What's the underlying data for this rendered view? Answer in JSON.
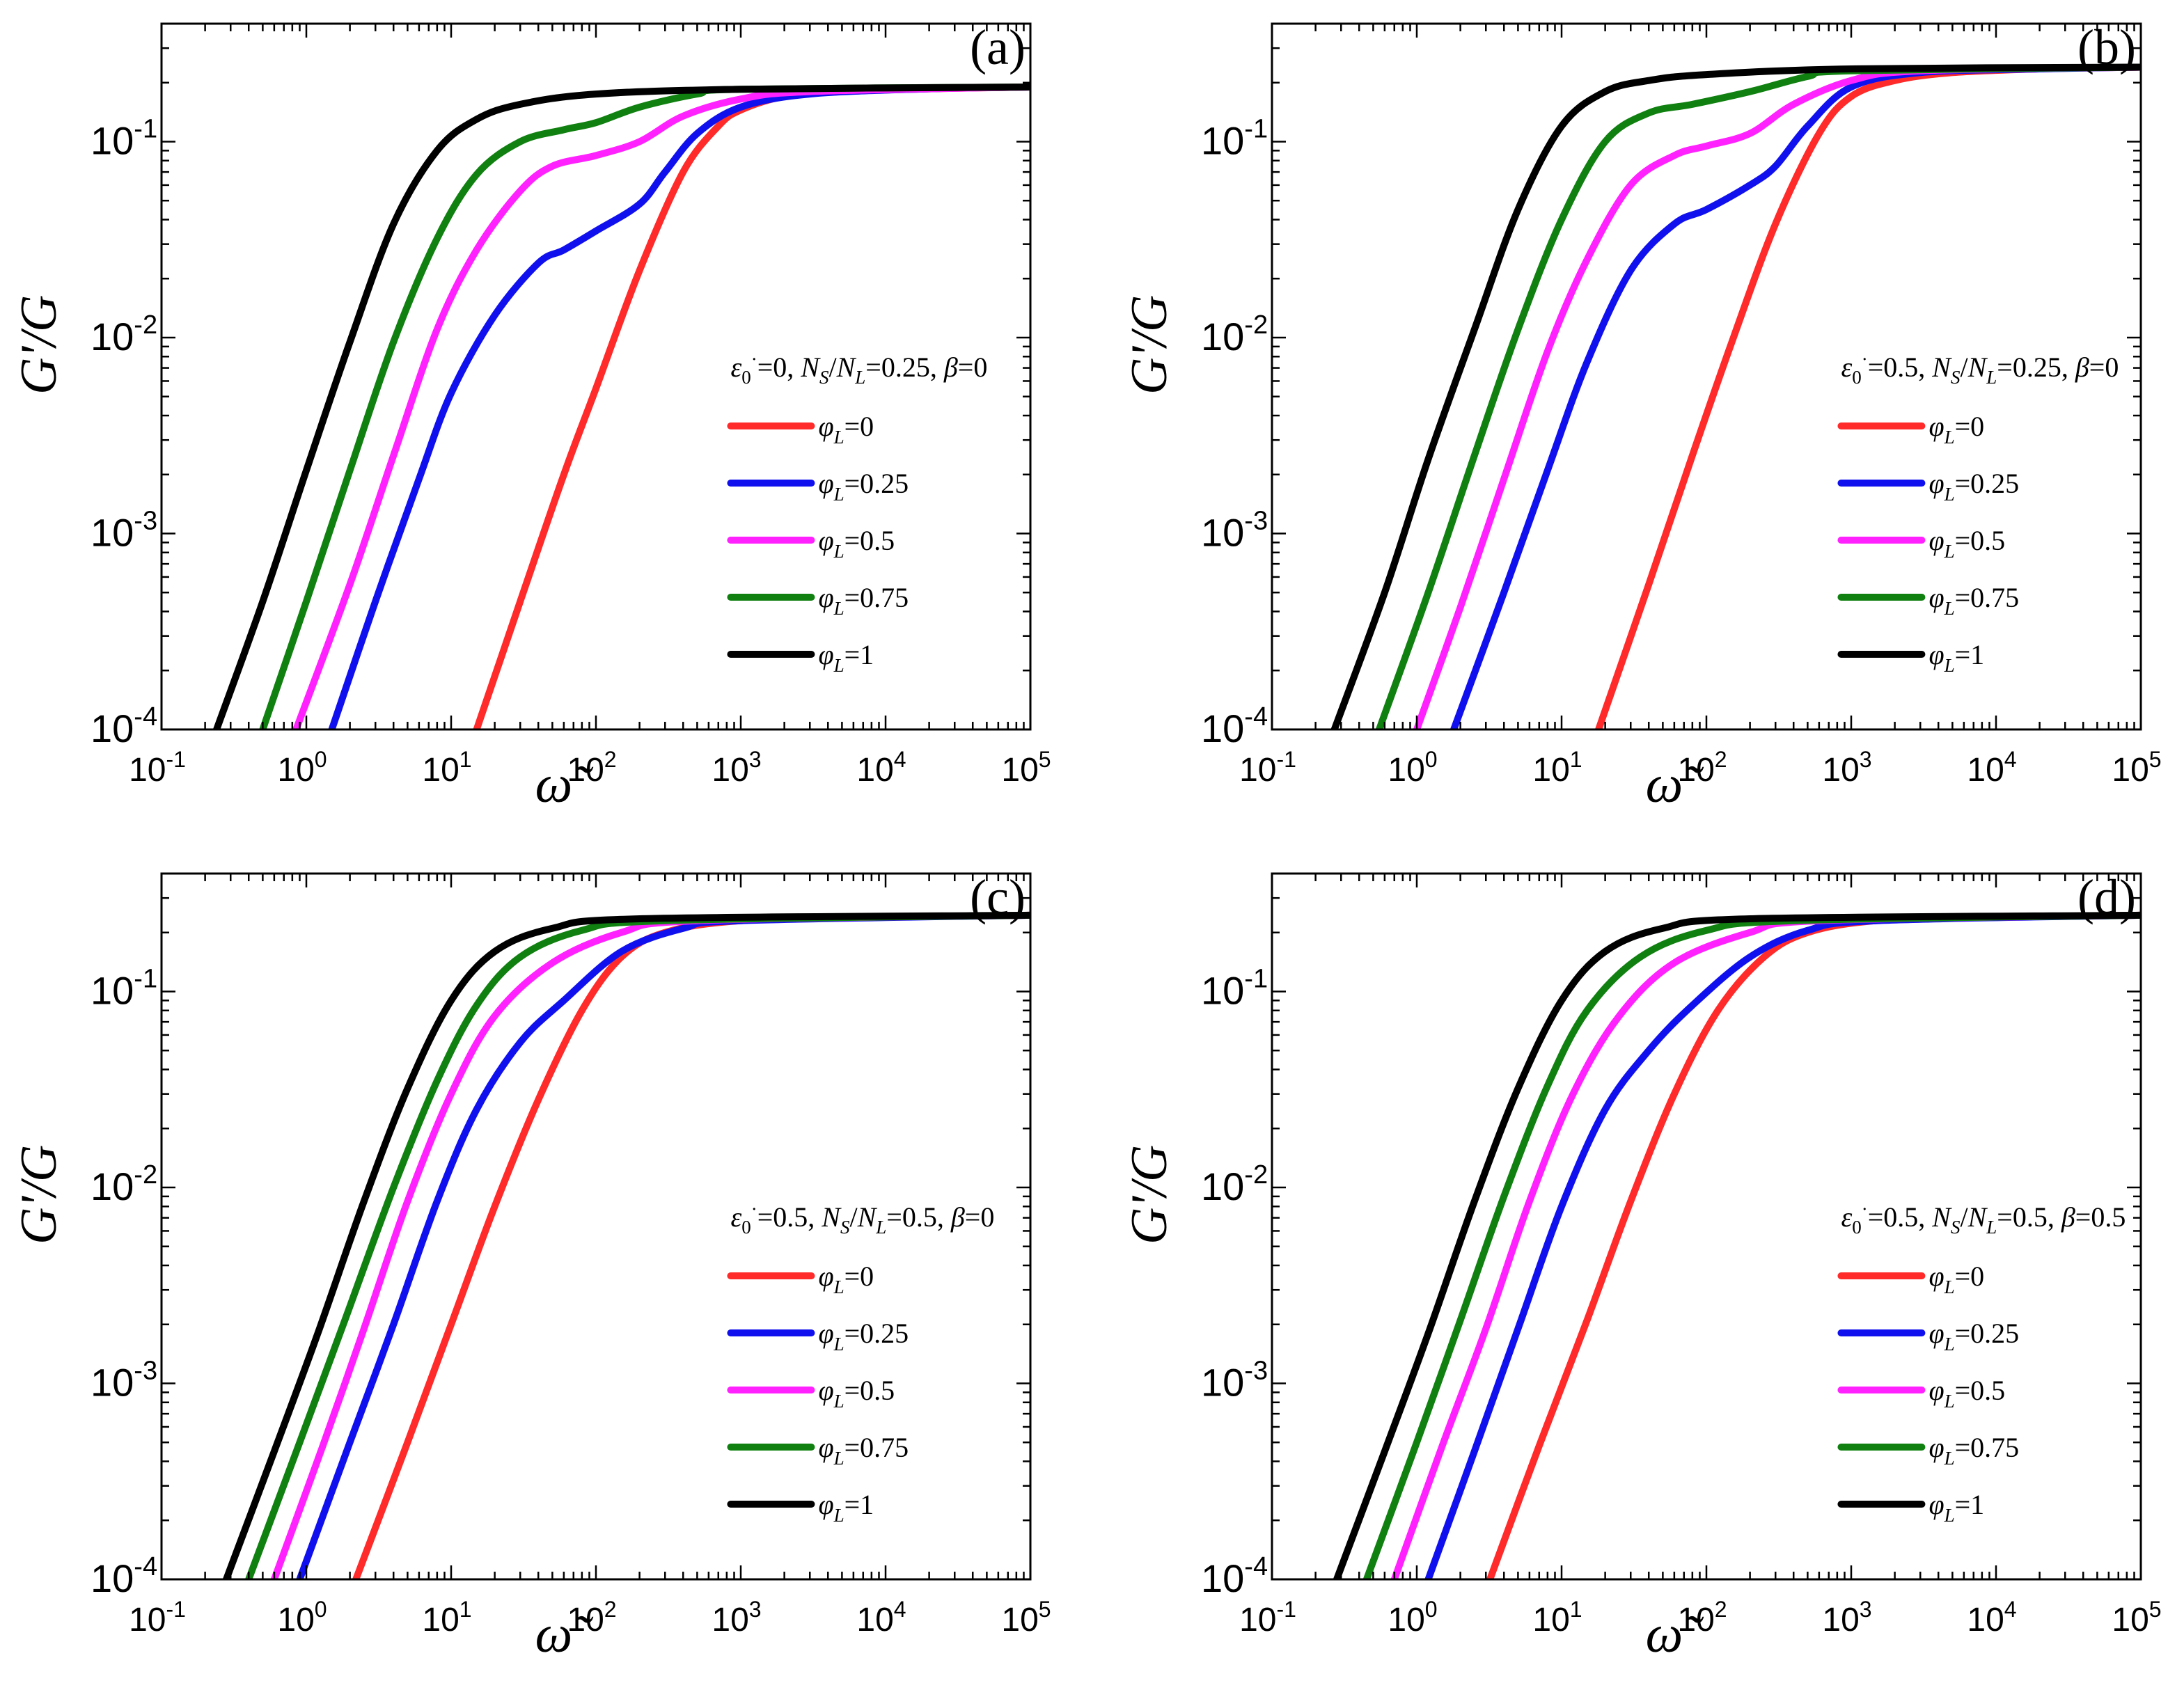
{
  "chart_data": [
    {
      "panel_label": "(a)",
      "type": "line",
      "xscale": "log",
      "yscale": "log",
      "xlim": [
        0.1,
        100000
      ],
      "ylim": [
        0.0001,
        0.4
      ],
      "xlabel": "ω̃",
      "ylabel": "G'/G",
      "x_tick_labels": [
        "10",
        "10",
        "10",
        "10",
        "10",
        "10",
        "10"
      ],
      "x_tick_exponents": [
        "-1",
        "0",
        "1",
        "2",
        "3",
        "4",
        "5"
      ],
      "y_tick_labels": [
        "10",
        "10",
        "10",
        "10"
      ],
      "y_tick_exponents": [
        "-4",
        "-3",
        "-2",
        "-1"
      ],
      "params": {
        "eps0": "0",
        "ratio": "0.25",
        "beta": "0"
      },
      "legend_position": "center-right",
      "series": [
        {
          "name": "φL=0",
          "phi": "0",
          "color": "#ff2a2a",
          "x": [
            15,
            30,
            60,
            100,
            200,
            400,
            700,
            1000,
            2000,
            5000,
            20000,
            100000
          ],
          "y": [
            0.0001,
            0.00045,
            0.002,
            0.0055,
            0.022,
            0.07,
            0.12,
            0.145,
            0.17,
            0.18,
            0.186,
            0.19
          ]
        },
        {
          "name": "φL=0.25",
          "phi": "0.25",
          "color": "#1010ee",
          "x": [
            1.5,
            3,
            6,
            10,
            20,
            40,
            60,
            100,
            200,
            300,
            500,
            1000,
            3000,
            20000,
            100000
          ],
          "y": [
            0.0001,
            0.00045,
            0.0019,
            0.0052,
            0.013,
            0.024,
            0.028,
            0.035,
            0.048,
            0.07,
            0.11,
            0.15,
            0.175,
            0.186,
            0.19
          ]
        },
        {
          "name": "φL=0.5",
          "phi": "0.5",
          "color": "#ff22ff",
          "x": [
            0.85,
            2,
            4,
            8,
            15,
            30,
            50,
            100,
            200,
            400,
            1000,
            3000,
            100000
          ],
          "y": [
            0.0001,
            0.00055,
            0.0025,
            0.011,
            0.028,
            0.056,
            0.075,
            0.085,
            0.1,
            0.135,
            0.165,
            0.18,
            0.19
          ]
        },
        {
          "name": "φL=0.75",
          "phi": "0.75",
          "color": "#108010",
          "x": [
            0.5,
            1,
            2,
            4,
            8,
            15,
            30,
            60,
            100,
            200,
            500,
            1000,
            100000
          ],
          "y": [
            0.0001,
            0.00045,
            0.0021,
            0.0095,
            0.032,
            0.068,
            0.1,
            0.115,
            0.125,
            0.15,
            0.175,
            0.185,
            0.19
          ]
        },
        {
          "name": "φL=1",
          "phi": "1",
          "color": "#000000",
          "x": [
            0.24,
            0.5,
            1,
            2,
            4,
            8,
            15,
            30,
            100,
            1000,
            100000
          ],
          "y": [
            0.0001,
            0.00045,
            0.0021,
            0.0095,
            0.038,
            0.09,
            0.13,
            0.155,
            0.175,
            0.185,
            0.19
          ]
        }
      ]
    },
    {
      "panel_label": "(b)",
      "type": "line",
      "xscale": "log",
      "yscale": "log",
      "xlim": [
        0.1,
        100000
      ],
      "ylim": [
        0.0001,
        0.4
      ],
      "xlabel": "ω̃",
      "ylabel": "G'/G",
      "x_tick_labels": [
        "10",
        "10",
        "10",
        "10",
        "10",
        "10",
        "10"
      ],
      "x_tick_exponents": [
        "-1",
        "0",
        "1",
        "2",
        "3",
        "4",
        "5"
      ],
      "y_tick_labels": [
        "10",
        "10",
        "10",
        "10"
      ],
      "y_tick_exponents": [
        "-4",
        "-3",
        "-2",
        "-1"
      ],
      "params": {
        "eps0": "0.5",
        "ratio": "0.25",
        "beta": "0"
      },
      "legend_position": "center-right",
      "series": [
        {
          "name": "φL=0",
          "phi": "0",
          "color": "#ff2a2a",
          "x": [
            18,
            40,
            80,
            150,
            300,
            600,
            1000,
            2000,
            5000,
            20000,
            100000
          ],
          "y": [
            0.0001,
            0.00055,
            0.0025,
            0.0095,
            0.038,
            0.11,
            0.17,
            0.205,
            0.225,
            0.235,
            0.24
          ]
        },
        {
          "name": "φL=0.25",
          "phi": "0.25",
          "color": "#1010ee",
          "x": [
            1.8,
            4,
            8,
            15,
            30,
            60,
            100,
            200,
            300,
            500,
            1000,
            3000,
            20000,
            100000
          ],
          "y": [
            0.0001,
            0.0005,
            0.0021,
            0.0075,
            0.022,
            0.038,
            0.045,
            0.06,
            0.075,
            0.12,
            0.19,
            0.225,
            0.235,
            0.24
          ]
        },
        {
          "name": "φL=0.5",
          "phi": "0.5",
          "color": "#ff22ff",
          "x": [
            1,
            2,
            4,
            8,
            15,
            30,
            60,
            100,
            200,
            400,
            1000,
            3000,
            100000
          ],
          "y": [
            0.0001,
            0.00042,
            0.0019,
            0.0085,
            0.025,
            0.06,
            0.085,
            0.095,
            0.11,
            0.155,
            0.205,
            0.23,
            0.24
          ]
        },
        {
          "name": "φL=0.75",
          "phi": "0.75",
          "color": "#108010",
          "x": [
            0.55,
            1.2,
            2.5,
            5,
            10,
            20,
            40,
            80,
            200,
            500,
            1000,
            100000
          ],
          "y": [
            0.0001,
            0.0005,
            0.0025,
            0.011,
            0.04,
            0.1,
            0.14,
            0.155,
            0.18,
            0.215,
            0.23,
            0.24
          ]
        },
        {
          "name": "φL=1",
          "phi": "1",
          "color": "#000000",
          "x": [
            0.27,
            0.6,
            1.2,
            2.5,
            5,
            10,
            20,
            40,
            100,
            1000,
            100000
          ],
          "y": [
            0.0001,
            0.0005,
            0.0024,
            0.011,
            0.045,
            0.12,
            0.18,
            0.205,
            0.22,
            0.235,
            0.24
          ]
        }
      ]
    },
    {
      "panel_label": "(c)",
      "type": "line",
      "xscale": "log",
      "yscale": "log",
      "xlim": [
        0.1,
        100000
      ],
      "ylim": [
        0.0001,
        0.4
      ],
      "xlabel": "ω̃",
      "ylabel": "G'/G",
      "x_tick_labels": [
        "10",
        "10",
        "10",
        "10",
        "10",
        "10",
        "10"
      ],
      "x_tick_exponents": [
        "-1",
        "0",
        "1",
        "2",
        "3",
        "4",
        "5"
      ],
      "y_tick_labels": [
        "10",
        "10",
        "10",
        "10"
      ],
      "y_tick_exponents": [
        "-4",
        "-3",
        "-2",
        "-1"
      ],
      "params": {
        "eps0": "0.5",
        "ratio": "0.5",
        "beta": "0"
      },
      "legend_position": "center-right",
      "series": [
        {
          "name": "φL=0",
          "phi": "0",
          "color": "#ff2a2a",
          "x": [
            2.2,
            5,
            10,
            20,
            40,
            80,
            150,
            300,
            1000,
            10000,
            100000
          ],
          "y": [
            0.0001,
            0.0005,
            0.002,
            0.008,
            0.028,
            0.08,
            0.15,
            0.2,
            0.23,
            0.24,
            0.245
          ]
        },
        {
          "name": "φL=0.25",
          "phi": "0.25",
          "color": "#1010ee",
          "x": [
            0.9,
            2,
            4,
            8,
            15,
            30,
            60,
            150,
            400,
            1000,
            100000
          ],
          "y": [
            0.0001,
            0.0005,
            0.002,
            0.0085,
            0.025,
            0.055,
            0.09,
            0.16,
            0.21,
            0.23,
            0.245
          ]
        },
        {
          "name": "φL=0.5",
          "phi": "0.5",
          "color": "#ff22ff",
          "x": [
            0.6,
            1.3,
            2.5,
            5,
            10,
            20,
            50,
            150,
            500,
            100000
          ],
          "y": [
            0.0001,
            0.00048,
            0.0019,
            0.0085,
            0.03,
            0.075,
            0.14,
            0.2,
            0.23,
            0.245
          ]
        },
        {
          "name": "φL=0.75",
          "phi": "0.75",
          "color": "#108010",
          "x": [
            0.4,
            0.9,
            1.8,
            4,
            8,
            15,
            30,
            80,
            300,
            100000
          ],
          "y": [
            0.0001,
            0.0005,
            0.002,
            0.01,
            0.035,
            0.085,
            0.15,
            0.205,
            0.23,
            0.245
          ]
        },
        {
          "name": "φL=1",
          "phi": "1",
          "color": "#000000",
          "x": [
            0.28,
            0.6,
            1.2,
            2.5,
            5,
            10,
            20,
            50,
            200,
            100000
          ],
          "y": [
            0.0001,
            0.00045,
            0.0018,
            0.0085,
            0.032,
            0.09,
            0.16,
            0.21,
            0.235,
            0.245
          ]
        }
      ]
    },
    {
      "panel_label": "(d)",
      "type": "line",
      "xscale": "log",
      "yscale": "log",
      "xlim": [
        0.1,
        100000
      ],
      "ylim": [
        0.0001,
        0.4
      ],
      "xlabel": "ω̃",
      "ylabel": "G'/G",
      "x_tick_labels": [
        "10",
        "10",
        "10",
        "10",
        "10",
        "10",
        "10"
      ],
      "x_tick_exponents": [
        "-1",
        "0",
        "1",
        "2",
        "3",
        "4",
        "5"
      ],
      "y_tick_labels": [
        "10",
        "10",
        "10",
        "10"
      ],
      "y_tick_exponents": [
        "-4",
        "-3",
        "-2",
        "-1"
      ],
      "params": {
        "eps0": "0.5",
        "ratio": "0.5",
        "beta": "0.5"
      },
      "legend_position": "center-right",
      "series": [
        {
          "name": "φL=0",
          "phi": "0",
          "color": "#ff2a2a",
          "x": [
            3.2,
            7,
            15,
            30,
            60,
            120,
            250,
            500,
            1500,
            10000,
            100000
          ],
          "y": [
            0.0001,
            0.00048,
            0.0021,
            0.0085,
            0.03,
            0.08,
            0.15,
            0.2,
            0.23,
            0.24,
            0.245
          ]
        },
        {
          "name": "φL=0.25",
          "phi": "0.25",
          "color": "#1010ee",
          "x": [
            1.2,
            2.5,
            5,
            10,
            20,
            40,
            80,
            200,
            500,
            1500,
            100000
          ],
          "y": [
            0.0001,
            0.00045,
            0.0019,
            0.008,
            0.025,
            0.05,
            0.085,
            0.15,
            0.205,
            0.23,
            0.245
          ]
        },
        {
          "name": "φL=0.5",
          "phi": "0.5",
          "color": "#ff22ff",
          "x": [
            0.7,
            1.5,
            3,
            6,
            12,
            25,
            60,
            200,
            600,
            100000
          ],
          "y": [
            0.0001,
            0.00048,
            0.0019,
            0.0085,
            0.03,
            0.075,
            0.14,
            0.2,
            0.23,
            0.245
          ]
        },
        {
          "name": "φL=0.75",
          "phi": "0.75",
          "color": "#108010",
          "x": [
            0.45,
            1,
            2,
            4,
            8,
            15,
            35,
            100,
            400,
            100000
          ],
          "y": [
            0.0001,
            0.0005,
            0.0021,
            0.009,
            0.033,
            0.08,
            0.15,
            0.205,
            0.23,
            0.245
          ]
        },
        {
          "name": "φL=1",
          "phi": "1",
          "color": "#000000",
          "x": [
            0.28,
            0.6,
            1.2,
            2.5,
            5,
            10,
            20,
            50,
            200,
            100000
          ],
          "y": [
            0.0001,
            0.00045,
            0.0018,
            0.0085,
            0.032,
            0.09,
            0.16,
            0.21,
            0.235,
            0.245
          ]
        }
      ]
    }
  ]
}
